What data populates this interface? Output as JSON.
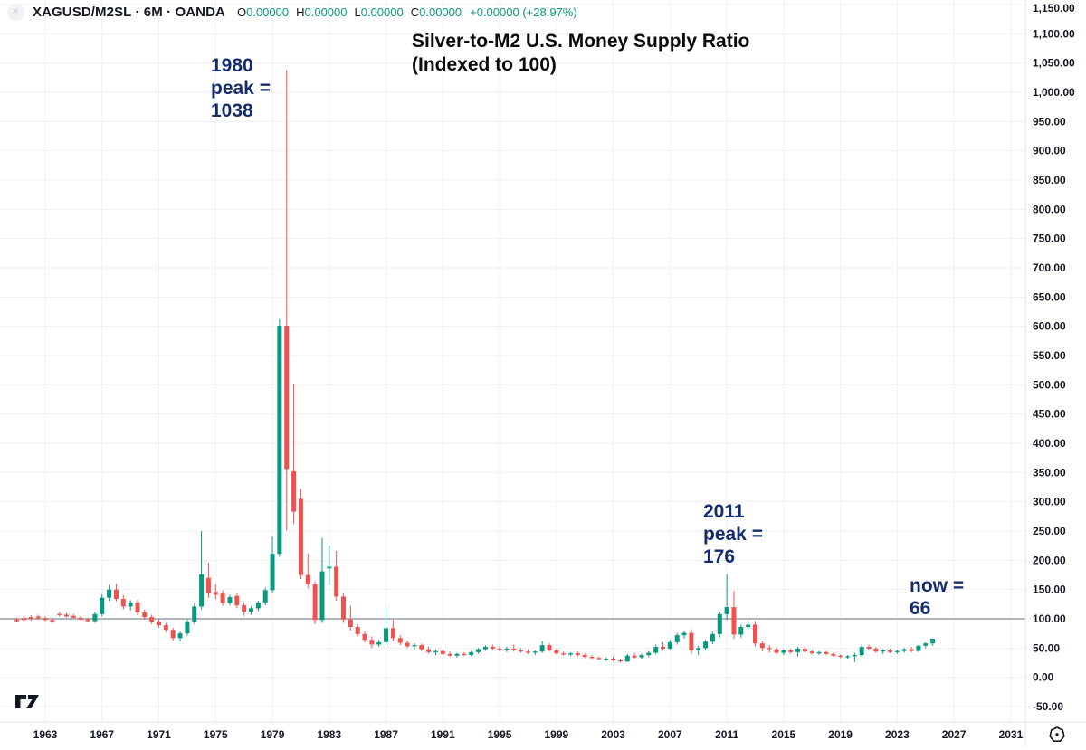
{
  "header": {
    "logo_glyph": "✕",
    "symbol": "XAGUSD/M2SL · 6M · OANDA",
    "ohlc": [
      {
        "label": "O",
        "value": "0.00000"
      },
      {
        "label": "H",
        "value": "0.00000"
      },
      {
        "label": "L",
        "value": "0.00000"
      },
      {
        "label": "C",
        "value": "0.00000"
      }
    ],
    "change": "+0.00000 (+28.97%)"
  },
  "annotations": {
    "title": {
      "line1": "Silver-to-M2 U.S. Money Supply Ratio",
      "line2": "(Indexed to 100)"
    },
    "peak1980": {
      "line1": "1980",
      "line2": "peak =",
      "line3": "1038"
    },
    "peak2011": {
      "line1": "2011",
      "line2": "peak =",
      "line3": "176"
    },
    "now": {
      "line1": "now =",
      "line2": "66"
    }
  },
  "colors": {
    "up": "#089981",
    "down": "#ef5350",
    "grid": "#eef1f6",
    "axis_border": "#e0e3eb",
    "baseline": "#b2b5be",
    "text": "#131722",
    "accent": "#089981",
    "annotation": "#152c6e"
  },
  "chart_data": {
    "type": "candlestick",
    "title": "Silver-to-M2 U.S. Money Supply Ratio (Indexed to 100)",
    "symbol": "XAGUSD/M2SL",
    "timeframe": "6M",
    "exchange": "OANDA",
    "baseline_value": 100,
    "key_points": {
      "peak_1980": 1038,
      "peak_2011": 176,
      "now": 66
    },
    "y_axis": {
      "min": -50,
      "max": 1150,
      "step": 50
    },
    "x_axis": {
      "tick_years": [
        1963,
        1967,
        1971,
        1975,
        1979,
        1983,
        1987,
        1991,
        1995,
        1999,
        2003,
        2007,
        2011,
        2015,
        2019,
        2023,
        2027,
        2031
      ]
    },
    "candles": [
      [
        1961.0,
        99,
        102,
        94,
        96
      ],
      [
        1961.5,
        101,
        105,
        96,
        98
      ],
      [
        1962.0,
        103,
        106,
        97,
        100
      ],
      [
        1962.5,
        104,
        107,
        98,
        101
      ],
      [
        1963.0,
        101,
        104,
        96,
        98
      ],
      [
        1963.5,
        98,
        101,
        93,
        95
      ],
      [
        1964.0,
        108,
        112,
        104,
        106
      ],
      [
        1964.5,
        107,
        110,
        102,
        104
      ],
      [
        1965.0,
        105,
        108,
        100,
        102
      ],
      [
        1965.5,
        102,
        105,
        97,
        99
      ],
      [
        1966.0,
        99,
        102,
        94,
        96
      ],
      [
        1966.5,
        96,
        112,
        93,
        108
      ],
      [
        1967.0,
        108,
        142,
        104,
        136
      ],
      [
        1967.5,
        136,
        158,
        130,
        150
      ],
      [
        1968.0,
        150,
        160,
        130,
        134
      ],
      [
        1968.5,
        134,
        140,
        116,
        121
      ],
      [
        1969.0,
        121,
        132,
        114,
        128
      ],
      [
        1969.5,
        128,
        132,
        106,
        111
      ],
      [
        1970.0,
        111,
        116,
        99,
        103
      ],
      [
        1970.5,
        103,
        107,
        91,
        95
      ],
      [
        1971.0,
        95,
        99,
        85,
        89
      ],
      [
        1971.5,
        89,
        93,
        77,
        81
      ],
      [
        1972.0,
        81,
        85,
        63,
        67
      ],
      [
        1972.5,
        67,
        79,
        61,
        75
      ],
      [
        1973.0,
        75,
        99,
        71,
        95
      ],
      [
        1973.5,
        95,
        126,
        91,
        121
      ],
      [
        1974.0,
        121,
        250,
        116,
        176
      ],
      [
        1974.5,
        170,
        196,
        136,
        143
      ],
      [
        1975.0,
        146,
        159,
        133,
        141
      ],
      [
        1975.5,
        143,
        149,
        122,
        127
      ],
      [
        1976.0,
        127,
        141,
        123,
        137
      ],
      [
        1976.5,
        139,
        143,
        118,
        123
      ],
      [
        1977.0,
        123,
        128,
        105,
        112
      ],
      [
        1977.5,
        112,
        121,
        107,
        118
      ],
      [
        1978.0,
        118,
        131,
        113,
        128
      ],
      [
        1978.5,
        128,
        153,
        123,
        149
      ],
      [
        1979.0,
        149,
        241,
        144,
        211
      ],
      [
        1979.5,
        211,
        612,
        206,
        601
      ],
      [
        1980.0,
        601,
        1038,
        251,
        356
      ],
      [
        1980.5,
        352,
        502,
        262,
        283
      ],
      [
        1981.0,
        305,
        322,
        168,
        175
      ],
      [
        1981.5,
        175,
        212,
        152,
        159
      ],
      [
        1982.0,
        159,
        164,
        91,
        98
      ],
      [
        1982.5,
        98,
        238,
        93,
        181
      ],
      [
        1983.0,
        186,
        226,
        157,
        189
      ],
      [
        1983.5,
        189,
        216,
        131,
        138
      ],
      [
        1984.0,
        138,
        143,
        93,
        99
      ],
      [
        1984.5,
        99,
        122,
        80,
        86
      ],
      [
        1985.0,
        86,
        90,
        70,
        74
      ],
      [
        1985.5,
        74,
        78,
        60,
        64
      ],
      [
        1986.0,
        64,
        70,
        50,
        56
      ],
      [
        1986.5,
        56,
        64,
        52,
        60
      ],
      [
        1987.0,
        60,
        119,
        54,
        84
      ],
      [
        1987.5,
        84,
        98,
        62,
        67
      ],
      [
        1988.0,
        67,
        72,
        55,
        59
      ],
      [
        1988.5,
        59,
        63,
        50,
        53
      ],
      [
        1989.0,
        53,
        58,
        47,
        55
      ],
      [
        1989.5,
        55,
        58,
        45,
        48
      ],
      [
        1990.0,
        48,
        52,
        40,
        43
      ],
      [
        1990.5,
        43,
        47,
        38,
        45
      ],
      [
        1991.0,
        45,
        48,
        38,
        40
      ],
      [
        1991.5,
        40,
        44,
        35,
        37
      ],
      [
        1992.0,
        37,
        42,
        34,
        40
      ],
      [
        1992.5,
        40,
        43,
        36,
        38
      ],
      [
        1993.0,
        38,
        45,
        36,
        43
      ],
      [
        1993.5,
        43,
        50,
        40,
        48
      ],
      [
        1994.0,
        48,
        55,
        45,
        52
      ],
      [
        1994.5,
        52,
        56,
        46,
        49
      ],
      [
        1995.0,
        49,
        53,
        44,
        47
      ],
      [
        1995.5,
        47,
        52,
        43,
        49
      ],
      [
        1996.0,
        49,
        56,
        44,
        46
      ],
      [
        1996.5,
        46,
        50,
        42,
        44
      ],
      [
        1997.0,
        44,
        48,
        40,
        42
      ],
      [
        1997.5,
        42,
        46,
        38,
        44
      ],
      [
        1998.0,
        44,
        62,
        42,
        55
      ],
      [
        1998.5,
        55,
        58,
        44,
        46
      ],
      [
        1999.0,
        46,
        49,
        39,
        41
      ],
      [
        1999.5,
        41,
        44,
        37,
        39
      ],
      [
        2000.0,
        39,
        43,
        36,
        41
      ],
      [
        2000.5,
        41,
        44,
        36,
        38
      ],
      [
        2001.0,
        38,
        41,
        33,
        35
      ],
      [
        2001.5,
        35,
        38,
        31,
        33
      ],
      [
        2002.0,
        33,
        36,
        30,
        31
      ],
      [
        2002.5,
        31,
        34,
        28,
        32
      ],
      [
        2003.0,
        32,
        35,
        27,
        29
      ],
      [
        2003.5,
        29,
        32,
        25,
        27
      ],
      [
        2004.0,
        27,
        40,
        26,
        37
      ],
      [
        2004.5,
        37,
        42,
        32,
        34
      ],
      [
        2005.0,
        34,
        40,
        32,
        38
      ],
      [
        2005.5,
        38,
        45,
        34,
        42
      ],
      [
        2006.0,
        42,
        56,
        40,
        52
      ],
      [
        2006.5,
        52,
        60,
        46,
        49
      ],
      [
        2007.0,
        49,
        64,
        47,
        60
      ],
      [
        2007.5,
        60,
        76,
        56,
        72
      ],
      [
        2008.0,
        72,
        80,
        66,
        76
      ],
      [
        2008.5,
        76,
        82,
        40,
        46
      ],
      [
        2009.0,
        46,
        54,
        38,
        50
      ],
      [
        2009.5,
        50,
        64,
        46,
        61
      ],
      [
        2010.0,
        61,
        78,
        57,
        74
      ],
      [
        2010.5,
        74,
        112,
        68,
        108
      ],
      [
        2011.0,
        108,
        176,
        98,
        120
      ],
      [
        2011.5,
        120,
        148,
        66,
        73
      ],
      [
        2012.0,
        73,
        90,
        68,
        86
      ],
      [
        2012.5,
        86,
        95,
        82,
        90
      ],
      [
        2013.0,
        90,
        96,
        53,
        58
      ],
      [
        2013.5,
        58,
        62,
        44,
        50
      ],
      [
        2014.0,
        50,
        55,
        42,
        48
      ],
      [
        2014.5,
        48,
        51,
        40,
        42
      ],
      [
        2015.0,
        42,
        48,
        38,
        46
      ],
      [
        2015.5,
        46,
        49,
        40,
        43
      ],
      [
        2016.0,
        43,
        52,
        36,
        49
      ],
      [
        2016.5,
        49,
        54,
        42,
        44
      ],
      [
        2017.0,
        44,
        47,
        39,
        41
      ],
      [
        2017.5,
        41,
        45,
        38,
        43
      ],
      [
        2018.0,
        43,
        45,
        38,
        40
      ],
      [
        2018.5,
        40,
        42,
        35,
        37
      ],
      [
        2019.0,
        37,
        39,
        33,
        35
      ],
      [
        2019.5,
        35,
        38,
        32,
        36
      ],
      [
        2020.0,
        36,
        42,
        26,
        38
      ],
      [
        2020.5,
        38,
        56,
        34,
        52
      ],
      [
        2021.0,
        52,
        56,
        46,
        49
      ],
      [
        2021.5,
        49,
        52,
        42,
        44
      ],
      [
        2022.0,
        44,
        48,
        40,
        46
      ],
      [
        2022.5,
        46,
        49,
        41,
        43
      ],
      [
        2023.0,
        43,
        47,
        40,
        45
      ],
      [
        2023.5,
        45,
        50,
        42,
        48
      ],
      [
        2024.0,
        48,
        52,
        43,
        45
      ],
      [
        2024.5,
        45,
        56,
        43,
        54
      ],
      [
        2025.0,
        54,
        60,
        50,
        58
      ],
      [
        2025.5,
        58,
        66,
        54,
        66
      ]
    ]
  }
}
